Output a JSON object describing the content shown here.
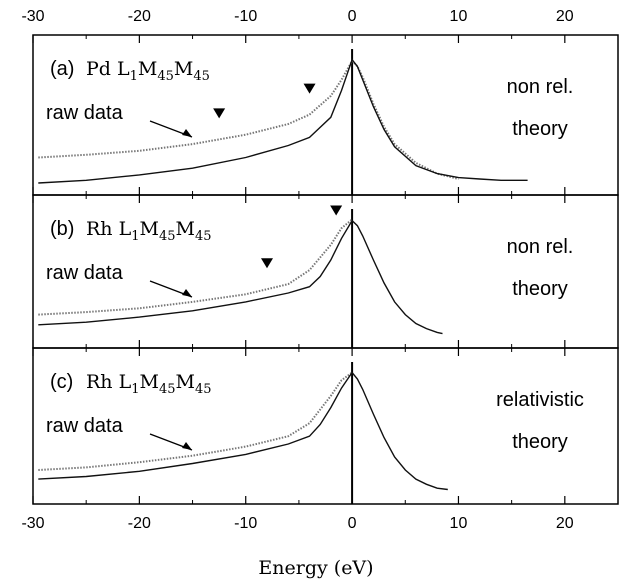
{
  "chart_data": {
    "type": "line",
    "xlabel": "Energy (eV)",
    "xlim": [
      -30,
      25
    ],
    "x_ticks": [
      "-30",
      "-20",
      "-10",
      "0",
      "10",
      "20"
    ],
    "top_x_ticks": [
      "-30",
      "-20",
      "-10",
      "0",
      "10",
      "20"
    ],
    "panels": [
      {
        "tag": "(a)",
        "element": "Pd",
        "transition": {
          "L": "L",
          "L_sub": "1",
          "M1": "M",
          "M1_sub": "45",
          "M2": "M",
          "M2_sub": "45"
        },
        "raw_label": "raw data",
        "theory_label": [
          "non rel.",
          "theory"
        ],
        "markers_x": [
          -12.5,
          -4
        ],
        "series": [
          {
            "name": "raw data",
            "style": "dotted",
            "x": [
              -29.5,
              -25,
              -20,
              -15,
              -10,
              -6,
              -4,
              -2,
              -1,
              0,
              0.5,
              1,
              2,
              3,
              4,
              6,
              8,
              10
            ],
            "y": [
              0.22,
              0.24,
              0.27,
              0.32,
              0.39,
              0.47,
              0.54,
              0.68,
              0.8,
              0.94,
              0.9,
              0.82,
              0.62,
              0.45,
              0.32,
              0.18,
              0.1,
              0.06
            ]
          },
          {
            "name": "theory",
            "style": "solid",
            "x": [
              -29.5,
              -25,
              -20,
              -15,
              -10,
              -6,
              -4,
              -2,
              -1,
              0,
              0.5,
              1,
              2,
              3,
              4,
              6,
              8,
              10,
              12,
              14,
              16.5
            ],
            "y": [
              0.03,
              0.05,
              0.09,
              0.14,
              0.22,
              0.31,
              0.37,
              0.52,
              0.72,
              0.95,
              0.9,
              0.8,
              0.6,
              0.43,
              0.3,
              0.16,
              0.1,
              0.07,
              0.06,
              0.05,
              0.05
            ]
          }
        ]
      },
      {
        "tag": "(b)",
        "element": "Rh",
        "transition": {
          "L": "L",
          "L_sub": "1",
          "M1": "M",
          "M1_sub": "45",
          "M2": "M",
          "M2_sub": "45"
        },
        "raw_label": "raw data",
        "theory_label": [
          "non rel.",
          "theory"
        ],
        "markers_x": [
          -8,
          -1.5
        ],
        "series": [
          {
            "name": "raw data",
            "style": "dotted",
            "x": [
              -29.5,
              -25,
              -20,
              -15,
              -10,
              -6,
              -4,
              -2,
              -1,
              0
            ],
            "y": [
              0.2,
              0.22,
              0.25,
              0.3,
              0.36,
              0.44,
              0.55,
              0.75,
              0.88,
              0.95
            ]
          },
          {
            "name": "theory",
            "style": "solid",
            "x": [
              -29.5,
              -25,
              -20,
              -15,
              -10,
              -6,
              -4,
              -3,
              -2,
              -1,
              0,
              0.5,
              1,
              2,
              3,
              4,
              5,
              6,
              7,
              8,
              8.5
            ],
            "y": [
              0.12,
              0.14,
              0.18,
              0.23,
              0.3,
              0.37,
              0.42,
              0.5,
              0.63,
              0.8,
              0.94,
              0.9,
              0.82,
              0.63,
              0.45,
              0.3,
              0.2,
              0.13,
              0.09,
              0.06,
              0.05
            ]
          }
        ]
      },
      {
        "tag": "(c)",
        "element": "Rh",
        "transition": {
          "L": "L",
          "L_sub": "1",
          "M1": "M",
          "M1_sub": "45",
          "M2": "M",
          "M2_sub": "45"
        },
        "raw_label": "raw data",
        "theory_label": [
          "relativistic",
          "theory"
        ],
        "markers_x": [],
        "series": [
          {
            "name": "raw data",
            "style": "dotted",
            "x": [
              -29.5,
              -25,
              -20,
              -15,
              -10,
              -6,
              -4,
              -2,
              -1,
              0
            ],
            "y": [
              0.2,
              0.22,
              0.26,
              0.31,
              0.38,
              0.46,
              0.56,
              0.77,
              0.89,
              0.95
            ]
          },
          {
            "name": "theory",
            "style": "solid",
            "x": [
              -29.5,
              -25,
              -20,
              -15,
              -10,
              -6,
              -4,
              -3,
              -2,
              -1,
              0,
              0.5,
              1,
              2,
              3,
              4,
              5,
              6,
              7,
              8,
              9
            ],
            "y": [
              0.13,
              0.15,
              0.19,
              0.25,
              0.32,
              0.4,
              0.46,
              0.55,
              0.68,
              0.83,
              0.95,
              0.9,
              0.82,
              0.63,
              0.45,
              0.3,
              0.2,
              0.13,
              0.09,
              0.06,
              0.05
            ]
          }
        ]
      }
    ]
  }
}
